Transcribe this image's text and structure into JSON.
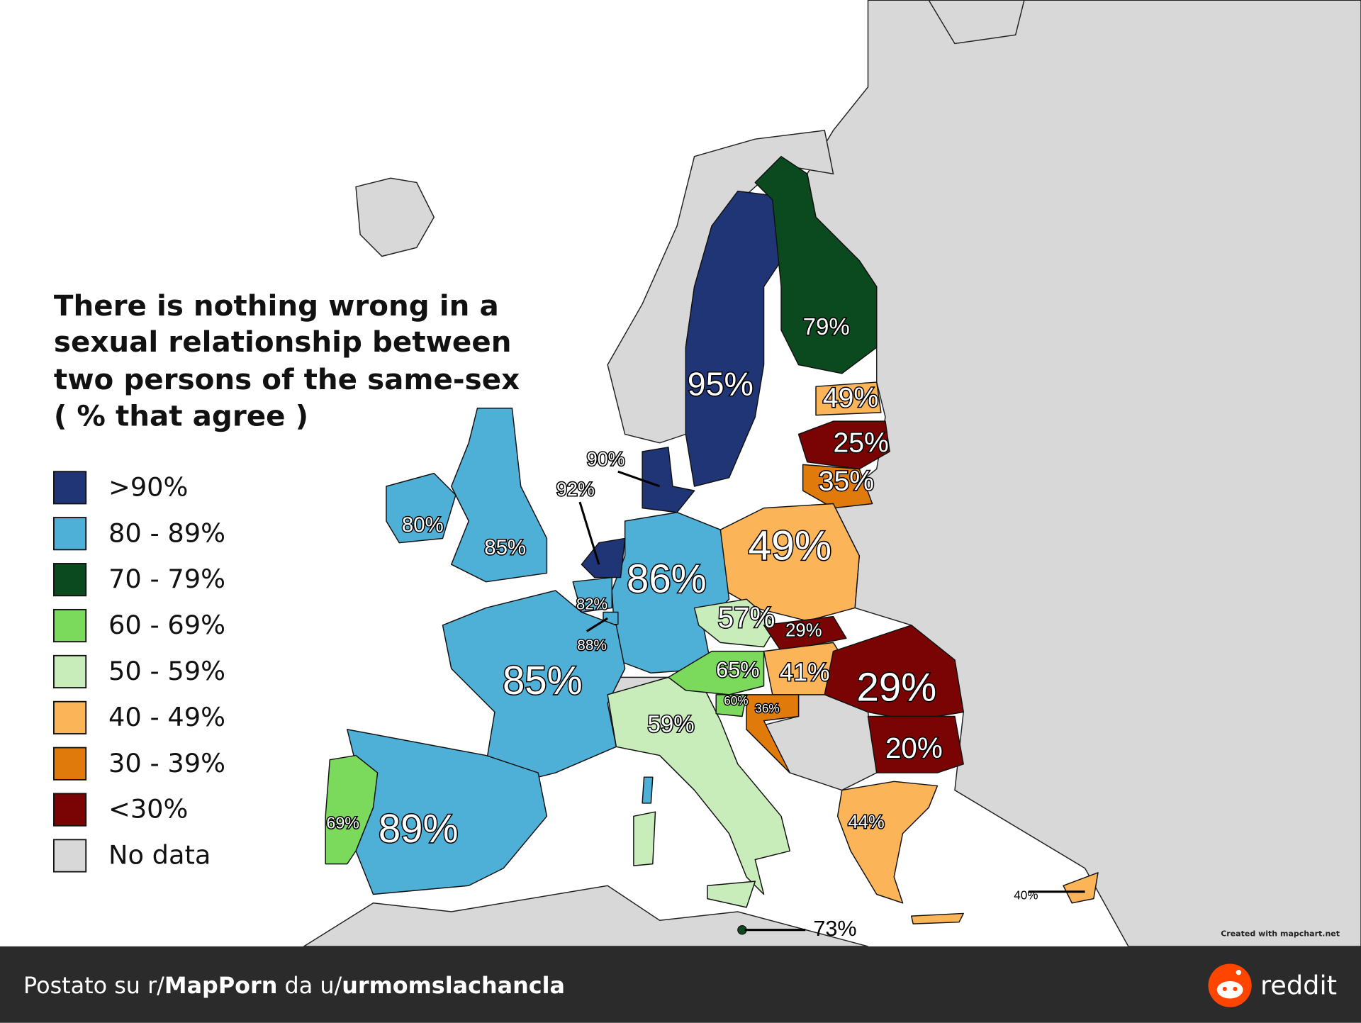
{
  "title": [
    "There is nothing wrong in a",
    "sexual relationship between",
    "two persons of the same-sex",
    "( % that agree )"
  ],
  "legend": [
    {
      "label": ">90%",
      "color": "#1f3576"
    },
    {
      "label": "80 - 89%",
      "color": "#4eb0d6"
    },
    {
      "label": "70 - 79%",
      "color": "#0b4a1e"
    },
    {
      "label": "60 - 69%",
      "color": "#7bd95c"
    },
    {
      "label": "50 - 59%",
      "color": "#c9ecbb"
    },
    {
      "label": "40 - 49%",
      "color": "#fbb558"
    },
    {
      "label": "30 - 39%",
      "color": "#e07b0b"
    },
    {
      "label": "<30%",
      "color": "#7a0303"
    },
    {
      "label": "No data",
      "color": "#d8d8d8"
    }
  ],
  "regions": [
    {
      "label": "95%",
      "color": "#1f3576"
    },
    {
      "label": "79%",
      "color": "#0b4a1e"
    },
    {
      "label": "49%",
      "color": "#fbb558"
    },
    {
      "label": "25%",
      "color": "#7a0303"
    },
    {
      "label": "35%",
      "color": "#e07b0b"
    },
    {
      "label": "49%",
      "color": "#fbb558"
    },
    {
      "label": "86%",
      "color": "#4eb0d6"
    },
    {
      "label": "90%",
      "color": "#1f3576"
    },
    {
      "label": "92%",
      "color": "#1f3576"
    },
    {
      "label": "82%",
      "color": "#4eb0d6"
    },
    {
      "label": "88%",
      "color": "#4eb0d6"
    },
    {
      "label": "85%",
      "color": "#4eb0d6"
    },
    {
      "label": "80%",
      "color": "#4eb0d6"
    },
    {
      "label": "85%",
      "color": "#4eb0d6"
    },
    {
      "label": "89%",
      "color": "#4eb0d6"
    },
    {
      "label": "69%",
      "color": "#7bd95c"
    },
    {
      "label": "59%",
      "color": "#c9ecbb"
    },
    {
      "label": "57%",
      "color": "#c9ecbb"
    },
    {
      "label": "65%",
      "color": "#7bd95c"
    },
    {
      "label": "29%",
      "color": "#7a0303"
    },
    {
      "label": "41%",
      "color": "#fbb558"
    },
    {
      "label": "60%",
      "color": "#7bd95c"
    },
    {
      "label": "36%",
      "color": "#e07b0b"
    },
    {
      "label": "29%",
      "color": "#7a0303"
    },
    {
      "label": "20%",
      "color": "#7a0303"
    },
    {
      "label": "44%",
      "color": "#fbb558"
    },
    {
      "label": "40%",
      "color": "#fbb558"
    },
    {
      "label": "73%",
      "color": "#0b4a1e"
    }
  ],
  "credit": "Created with mapchart.net",
  "footer": {
    "parts": [
      {
        "text": "Postato su r/",
        "bold": false
      },
      {
        "text": "MapPorn",
        "bold": true
      },
      {
        "text": " da u/",
        "bold": false
      },
      {
        "text": "urmomslachancla",
        "bold": true
      }
    ],
    "brand": "reddit"
  }
}
